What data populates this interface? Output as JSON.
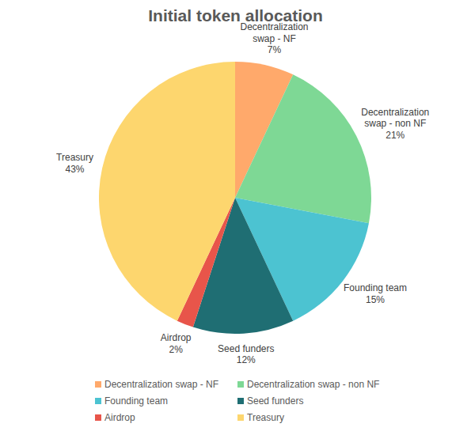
{
  "chart_data": {
    "type": "pie",
    "title": "Initial token allocation",
    "categories": [
      "Decentralization swap - NF",
      "Decentralization swap - non NF",
      "Founding team",
      "Seed funders",
      "Airdrop",
      "Treasury"
    ],
    "values": [
      7,
      21,
      15,
      12,
      2,
      43
    ],
    "value_labels": [
      "7%",
      "21%",
      "15%",
      "12%",
      "2%",
      "43%"
    ],
    "colors": [
      "#ffa96b",
      "#7ed895",
      "#4cc3d1",
      "#1f6e73",
      "#e8554a",
      "#fdd66e"
    ],
    "data_labels": true,
    "legend": "bottom"
  }
}
